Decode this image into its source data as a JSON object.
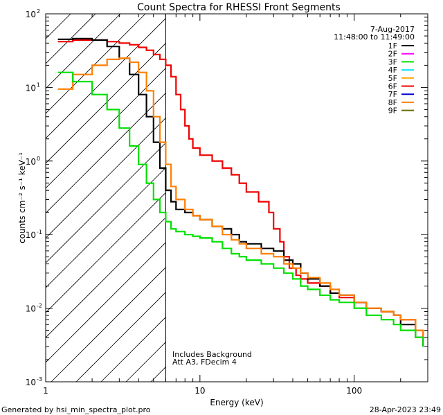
{
  "chart_data": {
    "type": "line",
    "title": "Count Spectra for RHESSI Front Segments",
    "xlabel": "Energy (keV)",
    "ylabel": "counts cm⁻² s⁻¹ keV⁻¹",
    "xscale": "log",
    "yscale": "log",
    "xlim": [
      1,
      300
    ],
    "ylim": [
      0.001,
      100
    ],
    "x_ticks": [
      {
        "v": 1,
        "label": "1"
      },
      {
        "v": 10,
        "label": "10"
      },
      {
        "v": 100,
        "label": "100"
      }
    ],
    "y_ticks": [
      {
        "v": 0.001,
        "m": "10",
        "e": "-3"
      },
      {
        "v": 0.01,
        "m": "10",
        "e": "-2"
      },
      {
        "v": 0.1,
        "m": "10",
        "e": "-1"
      },
      {
        "v": 1,
        "m": "10",
        "e": "0"
      },
      {
        "v": 10,
        "m": "10",
        "e": "1"
      },
      {
        "v": 100,
        "m": "10",
        "e": "2"
      }
    ],
    "date": "7-Aug-2017",
    "time_range": "11:48:00 to 11:49:00",
    "attenuator_note": "Includes Background",
    "att_label": "Att A3, FDecim 4",
    "background_region_upper_kev": 6,
    "legend": [
      {
        "name": "1F",
        "color": "#000000"
      },
      {
        "name": "2F",
        "color": "#ff00ff"
      },
      {
        "name": "3F",
        "color": "#00e000"
      },
      {
        "name": "4F",
        "color": "#00e5ff"
      },
      {
        "name": "5F",
        "color": "#ffa500"
      },
      {
        "name": "6F",
        "color": "#ee0000"
      },
      {
        "name": "7F",
        "color": "#0000cc"
      },
      {
        "name": "8F",
        "color": "#ff7f00"
      },
      {
        "name": "9F",
        "color": "#6b6b00"
      }
    ],
    "series": [
      {
        "name": "6F",
        "color": "#ee0000",
        "points": [
          [
            1.2,
            42
          ],
          [
            1.5,
            44
          ],
          [
            2,
            44
          ],
          [
            2.5,
            42
          ],
          [
            3,
            40
          ],
          [
            3.5,
            38
          ],
          [
            4,
            35
          ],
          [
            4.5,
            32
          ],
          [
            5,
            28
          ],
          [
            5.5,
            24
          ],
          [
            6,
            20
          ],
          [
            6.5,
            14
          ],
          [
            7,
            8
          ],
          [
            7.5,
            5
          ],
          [
            8,
            3
          ],
          [
            8.5,
            2
          ],
          [
            9,
            1.5
          ],
          [
            10,
            1.2
          ],
          [
            12,
            1.0
          ],
          [
            14,
            0.8
          ],
          [
            16,
            0.65
          ],
          [
            18,
            0.5
          ],
          [
            20,
            0.38
          ],
          [
            24,
            0.28
          ],
          [
            28,
            0.2
          ],
          [
            30,
            0.12
          ],
          [
            33,
            0.08
          ],
          [
            35,
            0.05
          ],
          [
            38,
            0.035
          ],
          [
            42,
            0.028
          ],
          [
            45,
            0.025
          ],
          [
            50,
            0.022
          ],
          [
            60,
            0.02
          ],
          [
            70,
            0.016
          ],
          [
            80,
            0.014
          ],
          [
            100,
            0.012
          ],
          [
            120,
            0.01
          ],
          [
            150,
            0.009
          ],
          [
            180,
            0.008
          ],
          [
            200,
            0.007
          ],
          [
            250,
            0.005
          ],
          [
            280,
            0.004
          ]
        ]
      },
      {
        "name": "1F",
        "color": "#000000",
        "points": [
          [
            1.2,
            45
          ],
          [
            1.5,
            46
          ],
          [
            2,
            44
          ],
          [
            2.5,
            36
          ],
          [
            3,
            25
          ],
          [
            3.5,
            15
          ],
          [
            4,
            8
          ],
          [
            4.5,
            4
          ],
          [
            5,
            1.8
          ],
          [
            5.5,
            0.8
          ],
          [
            6,
            0.4
          ],
          [
            6.5,
            0.28
          ],
          [
            7,
            0.22
          ],
          [
            8,
            0.2
          ],
          [
            9,
            0.18
          ],
          [
            10,
            0.16
          ],
          [
            12,
            0.13
          ],
          [
            14,
            0.12
          ],
          [
            16,
            0.1
          ],
          [
            18,
            0.08
          ],
          [
            20,
            0.075
          ],
          [
            25,
            0.065
          ],
          [
            30,
            0.06
          ],
          [
            35,
            0.045
          ],
          [
            40,
            0.04
          ],
          [
            45,
            0.03
          ],
          [
            50,
            0.025
          ],
          [
            60,
            0.02
          ],
          [
            70,
            0.016
          ],
          [
            80,
            0.015
          ],
          [
            100,
            0.012
          ],
          [
            120,
            0.01
          ],
          [
            150,
            0.009
          ],
          [
            180,
            0.008
          ],
          [
            200,
            0.006
          ],
          [
            250,
            0.004
          ],
          [
            280,
            0.003
          ]
        ]
      },
      {
        "name": "8F",
        "color": "#ff7f00",
        "points": [
          [
            1.2,
            9.5
          ],
          [
            1.5,
            15
          ],
          [
            2,
            20
          ],
          [
            2.5,
            24
          ],
          [
            3,
            25
          ],
          [
            3.5,
            22
          ],
          [
            4,
            16
          ],
          [
            4.5,
            9
          ],
          [
            5,
            4
          ],
          [
            5.5,
            1.8
          ],
          [
            6,
            0.9
          ],
          [
            6.5,
            0.45
          ],
          [
            7,
            0.3
          ],
          [
            8,
            0.22
          ],
          [
            9,
            0.18
          ],
          [
            10,
            0.16
          ],
          [
            12,
            0.13
          ],
          [
            14,
            0.1
          ],
          [
            16,
            0.085
          ],
          [
            18,
            0.075
          ],
          [
            20,
            0.065
          ],
          [
            25,
            0.055
          ],
          [
            30,
            0.05
          ],
          [
            35,
            0.04
          ],
          [
            40,
            0.035
          ],
          [
            45,
            0.03
          ],
          [
            50,
            0.026
          ],
          [
            60,
            0.022
          ],
          [
            70,
            0.018
          ],
          [
            80,
            0.015
          ],
          [
            100,
            0.012
          ],
          [
            120,
            0.01
          ],
          [
            150,
            0.009
          ],
          [
            180,
            0.008
          ],
          [
            200,
            0.007
          ],
          [
            250,
            0.005
          ],
          [
            280,
            0.004
          ]
        ]
      },
      {
        "name": "3F",
        "color": "#00e000",
        "points": [
          [
            1.2,
            16
          ],
          [
            1.5,
            12
          ],
          [
            2,
            8
          ],
          [
            2.5,
            5
          ],
          [
            3,
            2.8
          ],
          [
            3.5,
            1.6
          ],
          [
            4,
            0.9
          ],
          [
            4.5,
            0.5
          ],
          [
            5,
            0.3
          ],
          [
            5.5,
            0.2
          ],
          [
            6,
            0.15
          ],
          [
            6.5,
            0.12
          ],
          [
            7,
            0.11
          ],
          [
            8,
            0.1
          ],
          [
            9,
            0.095
          ],
          [
            10,
            0.09
          ],
          [
            12,
            0.08
          ],
          [
            14,
            0.065
          ],
          [
            16,
            0.055
          ],
          [
            18,
            0.05
          ],
          [
            20,
            0.045
          ],
          [
            25,
            0.04
          ],
          [
            30,
            0.035
          ],
          [
            35,
            0.03
          ],
          [
            40,
            0.025
          ],
          [
            45,
            0.02
          ],
          [
            50,
            0.018
          ],
          [
            60,
            0.015
          ],
          [
            70,
            0.013
          ],
          [
            80,
            0.012
          ],
          [
            100,
            0.01
          ],
          [
            120,
            0.008
          ],
          [
            150,
            0.007
          ],
          [
            180,
            0.006
          ],
          [
            200,
            0.005
          ],
          [
            250,
            0.004
          ],
          [
            280,
            0.003
          ]
        ]
      }
    ]
  },
  "footer": {
    "generated_by": "Generated by hsi_min_spectra_plot.pro",
    "timestamp": "28-Apr-2023 23:49"
  }
}
